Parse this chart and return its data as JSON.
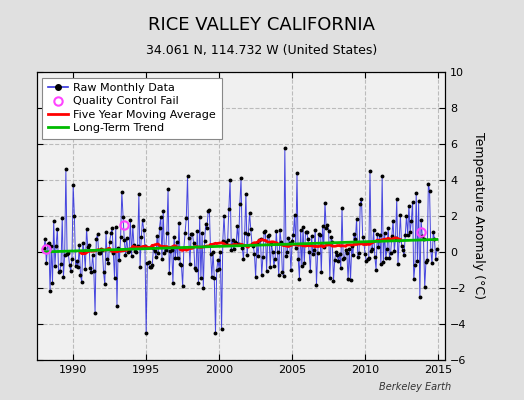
{
  "title": "RICE VALLEY CALIFORNIA",
  "subtitle": "34.061 N, 114.732 W (United States)",
  "ylabel": "Temperature Anomaly (°C)",
  "watermark": "Berkeley Earth",
  "xlim": [
    1987.5,
    2015.5
  ],
  "ylim": [
    -6,
    10
  ],
  "yticks": [
    -6,
    -4,
    -2,
    0,
    2,
    4,
    6,
    8,
    10
  ],
  "xticks": [
    1990,
    1995,
    2000,
    2005,
    2010,
    2015
  ],
  "bg_color": "#e0e0e0",
  "plot_bg_color": "#f0f0f0",
  "raw_line_color": "#3333dd",
  "raw_dot_color": "#000000",
  "ma_color": "#ff0000",
  "trend_color": "#00bb00",
  "qc_color": "#ff44ff",
  "title_fontsize": 13,
  "subtitle_fontsize": 9,
  "axis_fontsize": 8,
  "legend_fontsize": 8,
  "qc_times": [
    1988.17,
    1993.5,
    2013.83
  ],
  "qc_vals": [
    0.15,
    1.5,
    1.1
  ]
}
